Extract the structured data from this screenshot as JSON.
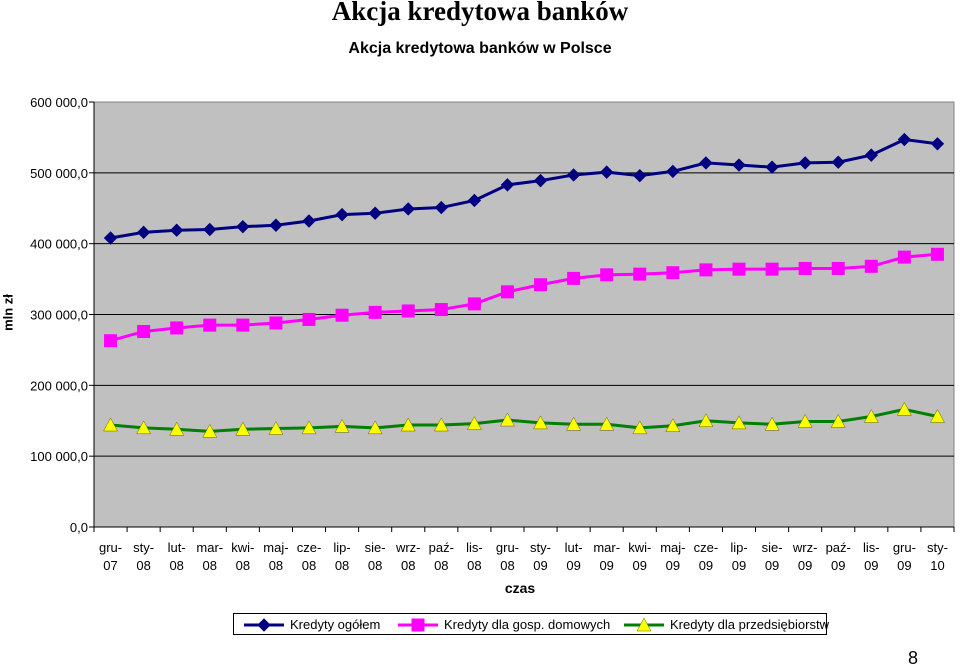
{
  "page": {
    "title": "Akcja kredytowa banków",
    "page_number": "8"
  },
  "chart_data": {
    "type": "line",
    "title": "Akcja kredytowa banków w Polsce",
    "xlabel": "czas",
    "ylabel": "mln zł",
    "ylim": [
      0,
      600000
    ],
    "yticks": [
      "0,0",
      "100 000,0",
      "200 000,0",
      "300 000,0",
      "400 000,0",
      "500 000,0",
      "600 000,0"
    ],
    "grid": true,
    "legend_position": "bottom",
    "categories": [
      [
        "gru-",
        "07"
      ],
      [
        "sty-",
        "08"
      ],
      [
        "lut-",
        "08"
      ],
      [
        "mar-",
        "08"
      ],
      [
        "kwi-",
        "08"
      ],
      [
        "maj-",
        "08"
      ],
      [
        "cze-",
        "08"
      ],
      [
        "lip-",
        "08"
      ],
      [
        "sie-",
        "08"
      ],
      [
        "wrz-",
        "08"
      ],
      [
        "paź-",
        "08"
      ],
      [
        "lis-",
        "08"
      ],
      [
        "gru-",
        "08"
      ],
      [
        "sty-",
        "09"
      ],
      [
        "lut-",
        "09"
      ],
      [
        "mar-",
        "09"
      ],
      [
        "kwi-",
        "09"
      ],
      [
        "maj-",
        "09"
      ],
      [
        "cze-",
        "09"
      ],
      [
        "lip-",
        "09"
      ],
      [
        "sie-",
        "09"
      ],
      [
        "wrz-",
        "09"
      ],
      [
        "paź-",
        "09"
      ],
      [
        "lis-",
        "09"
      ],
      [
        "gru-",
        "09"
      ],
      [
        "sty-",
        "10"
      ]
    ],
    "series": [
      {
        "name": "Kredyty ogółem",
        "color": "#000080",
        "fill": "#000080",
        "marker": "diamond",
        "values": [
          408000,
          416000,
          419000,
          420000,
          424000,
          426000,
          432000,
          441000,
          443000,
          449000,
          451000,
          461000,
          483000,
          489000,
          497000,
          501000,
          496000,
          502000,
          514000,
          511000,
          508000,
          514000,
          515000,
          525000,
          547000,
          541000
        ]
      },
      {
        "name": "Kredyty dla gosp. domowych",
        "color": "#ff00ff",
        "fill": "#ff00ff",
        "marker": "square",
        "values": [
          263000,
          276000,
          281000,
          285000,
          285000,
          288000,
          293000,
          299000,
          303000,
          305000,
          307000,
          315000,
          332000,
          342000,
          351000,
          356000,
          357000,
          359000,
          363000,
          364000,
          364000,
          365000,
          365000,
          368000,
          381000,
          385000
        ]
      },
      {
        "name": "Kredyty dla przedsiębiorstw",
        "color": "#008000",
        "fill": "#ffff00",
        "marker": "triangle",
        "values": [
          144000,
          140000,
          138000,
          135000,
          138000,
          139000,
          140000,
          142000,
          140000,
          144000,
          144000,
          146000,
          151000,
          147000,
          145000,
          145000,
          140000,
          143000,
          150000,
          147000,
          145000,
          149000,
          149000,
          156000,
          166000,
          156000
        ]
      }
    ]
  }
}
